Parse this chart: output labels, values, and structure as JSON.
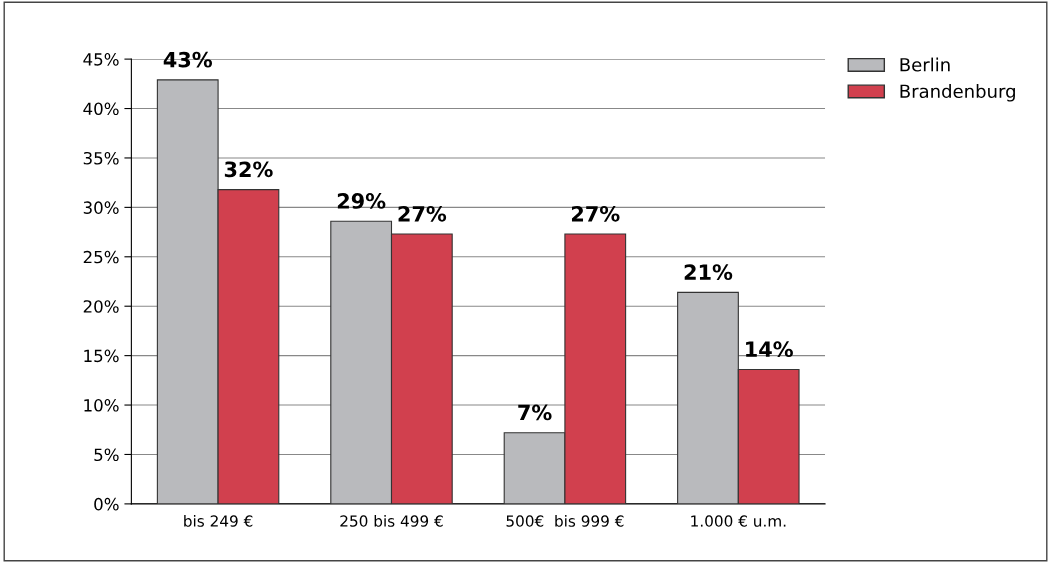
{
  "chart_data": {
    "type": "bar",
    "categories": [
      "bis 249 €",
      "250 bis 499 €",
      "500€  bis 999 €",
      "1.000 € u.m."
    ],
    "series": [
      {
        "name": "Berlin",
        "color": "#b9babd",
        "values": [
          42.9,
          28.6,
          7.2,
          21.4
        ],
        "value_labels": [
          "43%",
          "29%",
          "7%",
          "21%"
        ]
      },
      {
        "name": "Brandenburg",
        "color": "#d1404e",
        "values": [
          31.8,
          27.3,
          27.3,
          13.6
        ],
        "value_labels": [
          "32%",
          "27%",
          "27%",
          "14%"
        ]
      }
    ],
    "ylim": [
      0,
      45
    ],
    "yticks": [
      {
        "value": 0,
        "label": "0%"
      },
      {
        "value": 5,
        "label": "5%"
      },
      {
        "value": 10,
        "label": "10%"
      },
      {
        "value": 15,
        "label": "15%"
      },
      {
        "value": 20,
        "label": "20%"
      },
      {
        "value": 25,
        "label": "25%"
      },
      {
        "value": 30,
        "label": "30%"
      },
      {
        "value": 35,
        "label": "35%"
      },
      {
        "value": 40,
        "label": "40%"
      },
      {
        "value": 45,
        "label": "45%"
      }
    ],
    "grid": "y",
    "legend": "top right"
  }
}
